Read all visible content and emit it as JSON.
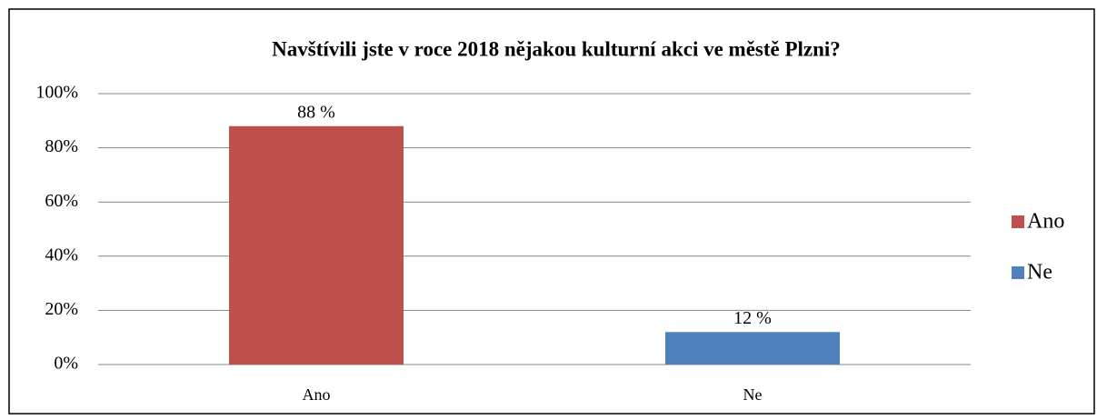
{
  "chart_data": {
    "type": "bar",
    "title": "Navštívili jste v roce 2018 nějakou kulturní akci ve městě Plzni?",
    "categories": [
      "Ano",
      "Ne"
    ],
    "series": [
      {
        "name": "Ano",
        "color": "#c0504d",
        "values": [
          88,
          null
        ],
        "value_labels": [
          "88 %",
          null
        ]
      },
      {
        "name": "Ne",
        "color": "#4f81bd",
        "values": [
          null,
          12
        ],
        "value_labels": [
          null,
          "12 %"
        ]
      }
    ],
    "ylim": [
      0,
      100
    ],
    "yticks": [
      {
        "value": 0,
        "label": "0%"
      },
      {
        "value": 20,
        "label": "20%"
      },
      {
        "value": 40,
        "label": "40%"
      },
      {
        "value": 60,
        "label": "60%"
      },
      {
        "value": 80,
        "label": "80%"
      },
      {
        "value": 100,
        "label": "100%"
      }
    ],
    "grid": true,
    "legend": "right"
  }
}
